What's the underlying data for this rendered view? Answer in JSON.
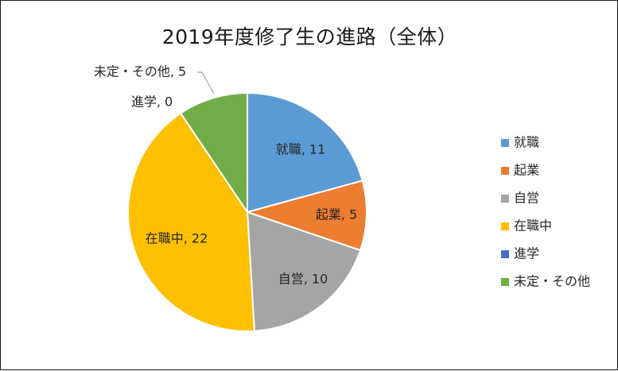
{
  "chart_data": {
    "type": "pie",
    "title": "2019年度修了生の進路（全体）",
    "categories": [
      "就職",
      "起業",
      "自営",
      "在職中",
      "進学",
      "未定・その他"
    ],
    "values": [
      11,
      5,
      10,
      22,
      0,
      5
    ],
    "colors": [
      "#5b9bd5",
      "#ed7d31",
      "#a5a5a5",
      "#ffc000",
      "#4472c4",
      "#70ad47"
    ],
    "data_labels": [
      "就職, 11",
      "起業, 5",
      "自営, 10",
      "在職中, 22",
      "進学, 0",
      "未定・その他, 5"
    ],
    "legend": {
      "position": "right",
      "entries": [
        "就職",
        "起業",
        "自営",
        "在職中",
        "進学",
        "未定・その他"
      ]
    },
    "start_angle_deg": 0,
    "direction": "clockwise"
  }
}
